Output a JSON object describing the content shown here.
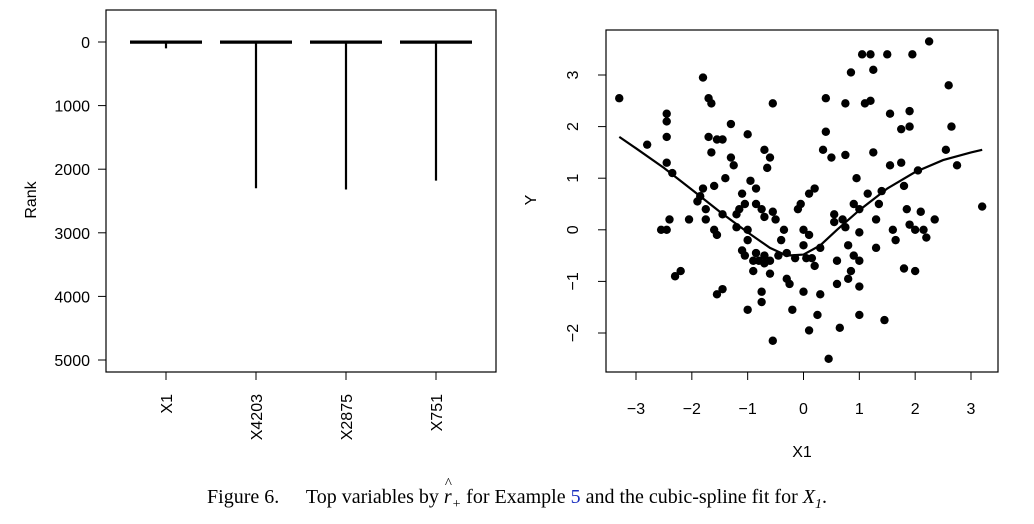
{
  "caption": {
    "figure_label": "Figure 6.",
    "text_before": "Top variables by",
    "symbol_base": "r",
    "symbol_sub": "+",
    "text_middle": "for Example",
    "example_ref": "5",
    "text_after": "and the cubic-spline fit for",
    "variable_base": "X",
    "variable_sub": "1",
    "text_end": "."
  },
  "chart_data": [
    {
      "type": "boxplot",
      "title": "",
      "ylabel": "Rank",
      "xlabel": "",
      "y_reversed": true,
      "ylim": [
        0,
        5000
      ],
      "y_ticks": [
        "0",
        "1000",
        "2000",
        "3000",
        "4000",
        "5000"
      ],
      "categories": [
        "X1",
        "X4203",
        "X2875",
        "X751"
      ],
      "boxes": [
        {
          "name": "X1",
          "median": 2,
          "q1": 1,
          "q3": 4,
          "whisker_low": 1,
          "whisker_high": 5,
          "whisker_bottom": 100
        },
        {
          "name": "X4203",
          "median": 2,
          "q1": 1,
          "q3": 4,
          "whisker_low": 1,
          "whisker_high": 5,
          "whisker_bottom": 2300
        },
        {
          "name": "X2875",
          "median": 2,
          "q1": 1,
          "q3": 4,
          "whisker_low": 1,
          "whisker_high": 5,
          "whisker_bottom": 2320
        },
        {
          "name": "X751",
          "median": 2,
          "q1": 1,
          "q3": 4,
          "whisker_low": 1,
          "whisker_high": 5,
          "whisker_bottom": 2180
        }
      ]
    },
    {
      "type": "scatter",
      "title": "",
      "xlabel": "X1",
      "ylabel": "Y",
      "xlim": [
        -3.5,
        3.3
      ],
      "ylim": [
        -2.6,
        3.8
      ],
      "x_ticks": [
        "−3",
        "−2",
        "−1",
        "0",
        "1",
        "2",
        "3"
      ],
      "y_ticks": [
        "−2",
        "−1",
        "0",
        "1",
        "2",
        "3"
      ],
      "points": [
        [
          -3.3,
          2.55
        ],
        [
          -2.8,
          1.65
        ],
        [
          -2.45,
          2.25
        ],
        [
          -2.45,
          2.1
        ],
        [
          -2.45,
          1.8
        ],
        [
          -2.45,
          1.3
        ],
        [
          -2.4,
          0.2
        ],
        [
          -2.35,
          1.1
        ],
        [
          -2.55,
          0.0
        ],
        [
          -2.45,
          0.0
        ],
        [
          -2.3,
          -0.9
        ],
        [
          -2.2,
          -0.8
        ],
        [
          -2.05,
          0.2
        ],
        [
          -1.9,
          0.55
        ],
        [
          -1.85,
          0.65
        ],
        [
          -1.8,
          2.95
        ],
        [
          -1.8,
          0.8
        ],
        [
          -1.75,
          0.4
        ],
        [
          -1.7,
          2.55
        ],
        [
          -1.7,
          1.8
        ],
        [
          -1.65,
          2.45
        ],
        [
          -1.65,
          1.5
        ],
        [
          -1.6,
          0.85
        ],
        [
          -1.55,
          1.75
        ],
        [
          -1.6,
          0.0
        ],
        [
          -1.55,
          -0.1
        ],
        [
          -1.55,
          -1.25
        ],
        [
          -1.45,
          -1.15
        ],
        [
          -1.45,
          1.75
        ],
        [
          -1.45,
          0.3
        ],
        [
          -1.4,
          1.0
        ],
        [
          -1.3,
          2.05
        ],
        [
          -1.3,
          1.4
        ],
        [
          -1.25,
          1.25
        ],
        [
          -1.2,
          0.3
        ],
        [
          -1.2,
          0.05
        ],
        [
          -1.15,
          0.4
        ],
        [
          -1.1,
          0.7
        ],
        [
          -1.05,
          0.5
        ],
        [
          -1.0,
          1.85
        ],
        [
          -1.0,
          0.0
        ],
        [
          -1.0,
          -0.2
        ],
        [
          -1.05,
          -0.5
        ],
        [
          -1.0,
          -1.55
        ],
        [
          -0.9,
          -0.6
        ],
        [
          -0.9,
          -0.8
        ],
        [
          -0.85,
          0.8
        ],
        [
          -0.85,
          0.5
        ],
        [
          -0.85,
          -0.45
        ],
        [
          -0.8,
          -0.6
        ],
        [
          -0.75,
          0.4
        ],
        [
          -0.75,
          -1.2
        ],
        [
          -0.75,
          -1.4
        ],
        [
          -0.7,
          1.55
        ],
        [
          -0.7,
          0.25
        ],
        [
          -0.7,
          -0.5
        ],
        [
          -0.7,
          -0.65
        ],
        [
          -0.65,
          1.2
        ],
        [
          -0.6,
          1.4
        ],
        [
          -0.6,
          -0.6
        ],
        [
          -0.6,
          -0.85
        ],
        [
          -0.55,
          2.45
        ],
        [
          -0.55,
          0.35
        ],
        [
          -0.55,
          -2.15
        ],
        [
          -0.5,
          0.2
        ],
        [
          -0.45,
          -0.5
        ],
        [
          -0.4,
          -0.2
        ],
        [
          -0.35,
          0.0
        ],
        [
          -0.3,
          -0.45
        ],
        [
          -0.25,
          -1.05
        ],
        [
          -0.2,
          -1.55
        ],
        [
          -0.15,
          -0.55
        ],
        [
          -0.1,
          0.4
        ],
        [
          -0.05,
          0.5
        ],
        [
          0.0,
          0.0
        ],
        [
          0.0,
          -0.3
        ],
        [
          0.0,
          -1.2
        ],
        [
          0.05,
          -0.55
        ],
        [
          0.1,
          0.7
        ],
        [
          0.1,
          -0.1
        ],
        [
          0.15,
          -0.55
        ],
        [
          0.2,
          0.8
        ],
        [
          0.2,
          -0.7
        ],
        [
          0.25,
          -1.65
        ],
        [
          0.3,
          -1.25
        ],
        [
          0.35,
          1.55
        ],
        [
          0.4,
          1.9
        ],
        [
          0.4,
          2.55
        ],
        [
          0.45,
          -2.5
        ],
        [
          0.5,
          1.4
        ],
        [
          0.55,
          0.3
        ],
        [
          0.6,
          -0.6
        ],
        [
          0.6,
          -1.05
        ],
        [
          0.65,
          -1.9
        ],
        [
          0.7,
          0.2
        ],
        [
          0.75,
          2.45
        ],
        [
          0.75,
          1.45
        ],
        [
          0.75,
          0.05
        ],
        [
          0.8,
          -0.3
        ],
        [
          0.8,
          -0.95
        ],
        [
          0.85,
          3.05
        ],
        [
          0.85,
          -0.8
        ],
        [
          0.9,
          0.5
        ],
        [
          0.9,
          -0.5
        ],
        [
          0.95,
          1.0
        ],
        [
          1.0,
          0.4
        ],
        [
          1.0,
          -0.05
        ],
        [
          1.0,
          -0.6
        ],
        [
          1.0,
          -1.1
        ],
        [
          1.0,
          -1.65
        ],
        [
          1.05,
          3.4
        ],
        [
          1.1,
          2.45
        ],
        [
          1.15,
          0.7
        ],
        [
          1.2,
          3.4
        ],
        [
          1.2,
          2.5
        ],
        [
          1.25,
          3.1
        ],
        [
          1.25,
          1.5
        ],
        [
          1.3,
          0.2
        ],
        [
          1.3,
          -0.35
        ],
        [
          1.35,
          0.5
        ],
        [
          1.4,
          0.75
        ],
        [
          1.45,
          -1.75
        ],
        [
          1.5,
          3.4
        ],
        [
          1.55,
          2.25
        ],
        [
          1.55,
          1.25
        ],
        [
          1.6,
          0.0
        ],
        [
          1.65,
          -0.2
        ],
        [
          1.75,
          1.95
        ],
        [
          1.75,
          1.3
        ],
        [
          1.8,
          0.85
        ],
        [
          1.8,
          -0.75
        ],
        [
          1.85,
          0.4
        ],
        [
          1.9,
          2.3
        ],
        [
          1.9,
          2.0
        ],
        [
          1.9,
          0.1
        ],
        [
          1.95,
          3.4
        ],
        [
          2.0,
          0.0
        ],
        [
          2.0,
          -0.8
        ],
        [
          2.05,
          1.15
        ],
        [
          2.1,
          0.35
        ],
        [
          2.15,
          0.0
        ],
        [
          2.2,
          -0.15
        ],
        [
          2.25,
          3.65
        ],
        [
          2.35,
          0.2
        ],
        [
          2.55,
          1.55
        ],
        [
          2.6,
          2.8
        ],
        [
          2.65,
          2.0
        ],
        [
          2.75,
          1.25
        ],
        [
          3.2,
          0.45
        ],
        [
          -1.75,
          0.2
        ],
        [
          -0.95,
          0.95
        ],
        [
          0.55,
          0.15
        ],
        [
          -0.3,
          -0.95
        ],
        [
          0.3,
          -0.35
        ],
        [
          0.1,
          -1.95
        ],
        [
          -1.1,
          -0.4
        ]
      ],
      "fit_curve": [
        [
          -3.3,
          1.8
        ],
        [
          -3.0,
          1.58
        ],
        [
          -2.5,
          1.2
        ],
        [
          -2.0,
          0.78
        ],
        [
          -1.5,
          0.35
        ],
        [
          -1.0,
          -0.05
        ],
        [
          -0.6,
          -0.35
        ],
        [
          -0.3,
          -0.5
        ],
        [
          0.0,
          -0.48
        ],
        [
          0.3,
          -0.3
        ],
        [
          0.6,
          0.0
        ],
        [
          1.0,
          0.38
        ],
        [
          1.5,
          0.8
        ],
        [
          2.0,
          1.12
        ],
        [
          2.5,
          1.35
        ],
        [
          3.0,
          1.5
        ],
        [
          3.2,
          1.55
        ]
      ]
    }
  ]
}
